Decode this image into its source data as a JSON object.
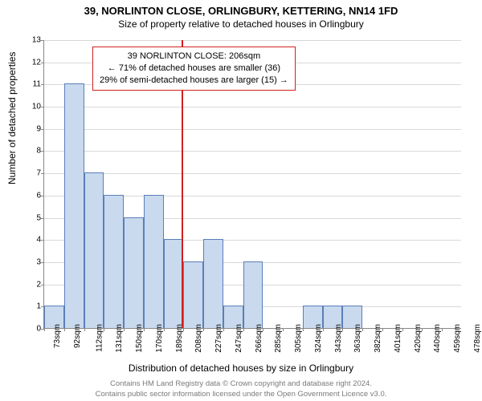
{
  "title": {
    "main": "39, NORLINTON CLOSE, ORLINGBURY, KETTERING, NN14 1FD",
    "sub": "Size of property relative to detached houses in Orlingbury"
  },
  "chart": {
    "type": "histogram",
    "ylabel": "Number of detached properties",
    "xlabel": "Distribution of detached houses by size in Orlingbury",
    "ylim": [
      0,
      13
    ],
    "ytick_step": 1,
    "x_start": 73,
    "x_bin_width": 19.3,
    "x_num_bins": 21,
    "x_unit": "sqm",
    "bar_values": [
      1,
      11,
      7,
      6,
      5,
      6,
      4,
      3,
      4,
      1,
      3,
      0,
      0,
      1,
      1,
      1,
      0,
      0,
      0,
      0,
      0
    ],
    "reference_x": 206,
    "bar_fill": "#c9d9ee",
    "bar_stroke": "#5a7fb8",
    "grid_color": "#d8d8d8",
    "axis_color": "#888888",
    "ref_line_color": "#d02020",
    "background": "#ffffff",
    "bar_width_ratio": 1.0,
    "tick_fontsize": 10,
    "label_fontsize": 12,
    "title_fontsize": 13
  },
  "annotation": {
    "border_color": "#d02020",
    "line1": "39 NORLINTON CLOSE: 206sqm",
    "line2": "← 71% of detached houses are smaller (36)",
    "line3": "29% of semi-detached houses are larger (15) →"
  },
  "footer": {
    "line1": "Contains HM Land Registry data © Crown copyright and database right 2024.",
    "line2": "Contains public sector information licensed under the Open Government Licence v3.0."
  }
}
